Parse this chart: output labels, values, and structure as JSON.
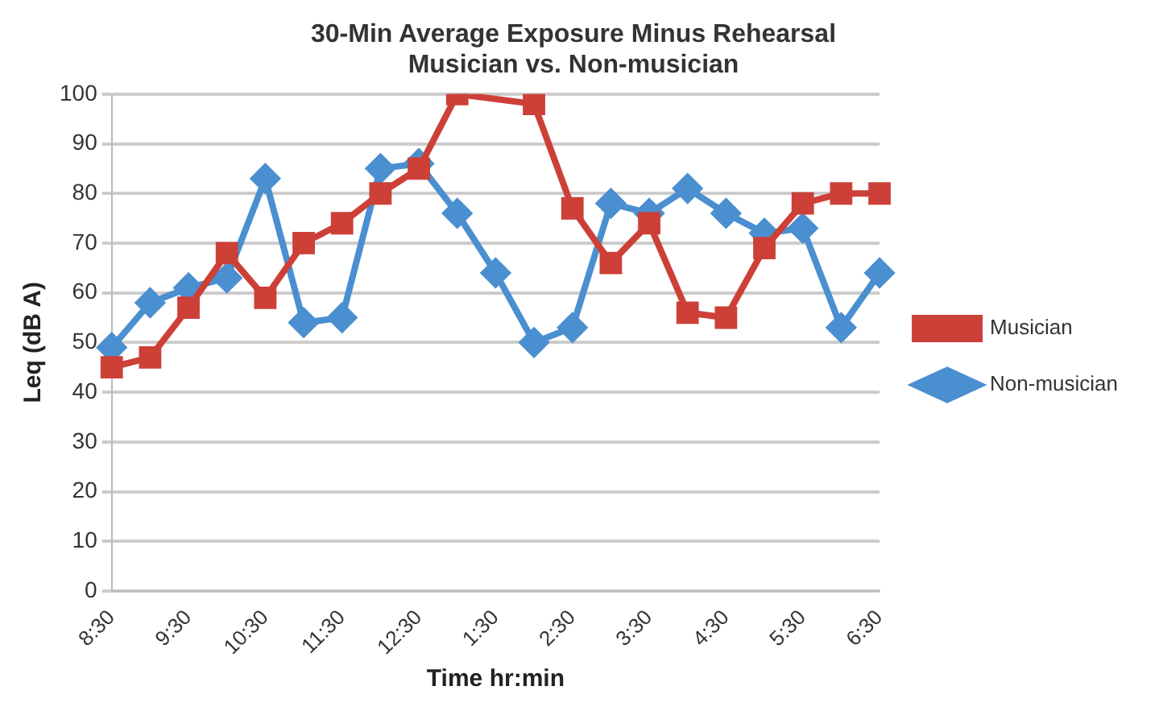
{
  "chart_data": {
    "type": "line",
    "title": "30-Min Average Exposure Minus Rehearsal\nMusician vs. Non-musician",
    "xlabel": "Time hr:min",
    "ylabel": "Leq (dB A)",
    "categories": [
      "8:30",
      null,
      "9:30",
      null,
      "10:30",
      null,
      "11:30",
      null,
      "12:30",
      null,
      "1:30",
      null,
      "2:30",
      null,
      "3:30",
      null,
      "4:30",
      null,
      "5:30",
      null,
      "6:30"
    ],
    "series": [
      {
        "name": "Non-musician",
        "color": "#4a8fd0",
        "marker": "diamond",
        "values": [
          49,
          58,
          61,
          63,
          83,
          54,
          55,
          85,
          86,
          76,
          64,
          50,
          53,
          78,
          76,
          81,
          76,
          72,
          73,
          53,
          64
        ]
      },
      {
        "name": "Musician",
        "color": "#cc4038",
        "marker": "square",
        "values": [
          45,
          47,
          57,
          68,
          59,
          70,
          74,
          80,
          85,
          100,
          null,
          98,
          77,
          66,
          74,
          56,
          55,
          69,
          78,
          80,
          80
        ]
      }
    ],
    "ylim": [
      0,
      100
    ],
    "yticks": [
      0,
      10,
      20,
      30,
      40,
      50,
      60,
      70,
      80,
      90,
      100
    ],
    "grid": "y",
    "legend": "right",
    "line_style": "solid"
  }
}
